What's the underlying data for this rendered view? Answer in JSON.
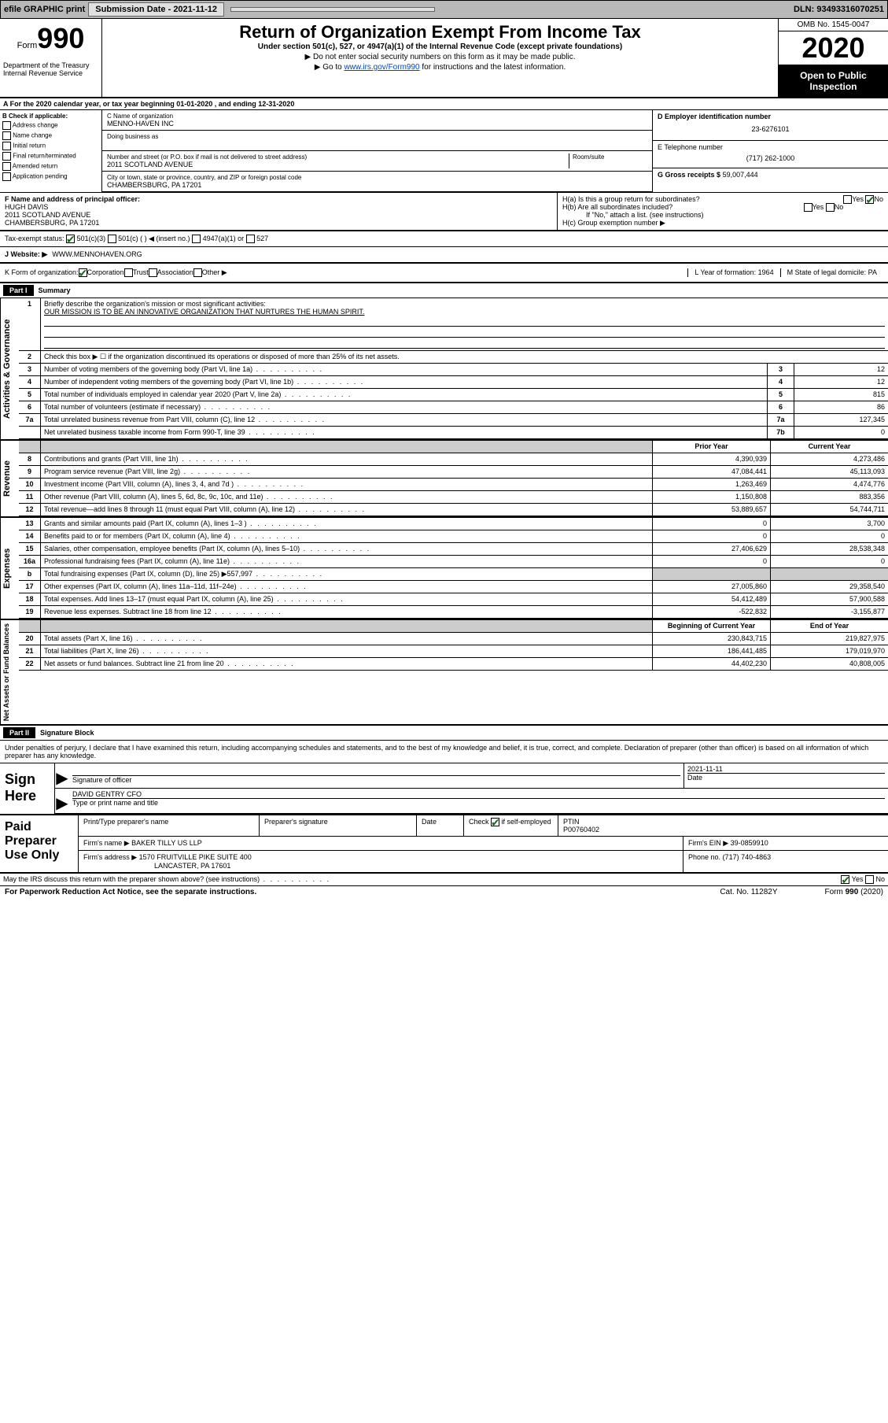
{
  "topbar": {
    "efile": "efile GRAPHIC print",
    "submission_label": "Submission Date - 2021-11-12",
    "dln": "DLN: 93493316070251"
  },
  "header": {
    "form_label": "Form",
    "form_num": "990",
    "dept": "Department of the Treasury\nInternal Revenue Service",
    "title": "Return of Organization Exempt From Income Tax",
    "sub": "Under section 501(c), 527, or 4947(a)(1) of the Internal Revenue Code (except private foundations)",
    "line1": "▶ Do not enter social security numbers on this form as it may be made public.",
    "line2_pre": "▶ Go to ",
    "line2_link": "www.irs.gov/Form990",
    "line2_post": " for instructions and the latest information.",
    "omb": "OMB No. 1545-0047",
    "year": "2020",
    "open": "Open to Public Inspection"
  },
  "section_a": "A For the 2020 calendar year, or tax year beginning 01-01-2020   , and ending 12-31-2020",
  "col_b": {
    "label": "B Check if applicable:",
    "items": [
      "Address change",
      "Name change",
      "Initial return",
      "Final return/terminated",
      "Amended return",
      "Application pending"
    ]
  },
  "col_c": {
    "name_lbl": "C Name of organization",
    "name": "MENNO-HAVEN INC",
    "dba_lbl": "Doing business as",
    "addr_lbl": "Number and street (or P.O. box if mail is not delivered to street address)",
    "room_lbl": "Room/suite",
    "addr": "2011 SCOTLAND AVENUE",
    "city_lbl": "City or town, state or province, country, and ZIP or foreign postal code",
    "city": "CHAMBERSBURG, PA  17201"
  },
  "col_d": {
    "ein_lbl": "D Employer identification number",
    "ein": "23-6276101",
    "tel_lbl": "E Telephone number",
    "tel": "(717) 262-1000",
    "gross_lbl": "G Gross receipts $",
    "gross": "59,007,444"
  },
  "section_f": {
    "lbl": "F  Name and address of principal officer:",
    "name": "HUGH DAVIS",
    "addr1": "2011 SCOTLAND AVENUE",
    "addr2": "CHAMBERSBURG, PA  17201"
  },
  "section_h": {
    "ha": "H(a)  Is this a group return for subordinates?",
    "hb": "H(b)  Are all subordinates included?",
    "hb_note": "If \"No,\" attach a list. (see instructions)",
    "hc": "H(c)  Group exemption number ▶"
  },
  "tax_status": {
    "lbl": "Tax-exempt status:",
    "opt1": "501(c)(3)",
    "opt2": "501(c) (  ) ◀ (insert no.)",
    "opt3": "4947(a)(1) or",
    "opt4": "527"
  },
  "website": {
    "lbl": "J   Website: ▶",
    "val": "WWW.MENNOHAVEN.ORG"
  },
  "korg": {
    "k": "K Form of organization:",
    "opts": [
      "Corporation",
      "Trust",
      "Association",
      "Other ▶"
    ],
    "l": "L Year of formation: 1964",
    "m": "M State of legal domicile: PA"
  },
  "part1": {
    "hdr": "Part I",
    "title": "Summary"
  },
  "gov": {
    "q1": "Briefly describe the organization's mission or most significant activities:",
    "mission": "OUR MISSION IS TO BE AN INNOVATIVE ORGANIZATION THAT NURTURES THE HUMAN SPIRIT.",
    "q2": "Check this box ▶ ☐  if the organization discontinued its operations or disposed of more than 25% of its net assets.",
    "rows": [
      {
        "n": "3",
        "d": "Number of voting members of the governing body (Part VI, line 1a)",
        "c": "3",
        "v": "12"
      },
      {
        "n": "4",
        "d": "Number of independent voting members of the governing body (Part VI, line 1b)",
        "c": "4",
        "v": "12"
      },
      {
        "n": "5",
        "d": "Total number of individuals employed in calendar year 2020 (Part V, line 2a)",
        "c": "5",
        "v": "815"
      },
      {
        "n": "6",
        "d": "Total number of volunteers (estimate if necessary)",
        "c": "6",
        "v": "86"
      },
      {
        "n": "7a",
        "d": "Total unrelated business revenue from Part VIII, column (C), line 12",
        "c": "7a",
        "v": "127,345"
      },
      {
        "n": "",
        "d": "Net unrelated business taxable income from Form 990-T, line 39",
        "c": "7b",
        "v": "0"
      }
    ]
  },
  "rev": {
    "hdr_py": "Prior Year",
    "hdr_cy": "Current Year",
    "rows": [
      {
        "n": "8",
        "d": "Contributions and grants (Part VIII, line 1h)",
        "py": "4,390,939",
        "cy": "4,273,486"
      },
      {
        "n": "9",
        "d": "Program service revenue (Part VIII, line 2g)",
        "py": "47,084,441",
        "cy": "45,113,093"
      },
      {
        "n": "10",
        "d": "Investment income (Part VIII, column (A), lines 3, 4, and 7d )",
        "py": "1,263,469",
        "cy": "4,474,776"
      },
      {
        "n": "11",
        "d": "Other revenue (Part VIII, column (A), lines 5, 6d, 8c, 9c, 10c, and 11e)",
        "py": "1,150,808",
        "cy": "883,356"
      },
      {
        "n": "12",
        "d": "Total revenue—add lines 8 through 11 (must equal Part VIII, column (A), line 12)",
        "py": "53,889,657",
        "cy": "54,744,711"
      }
    ]
  },
  "exp": {
    "rows": [
      {
        "n": "13",
        "d": "Grants and similar amounts paid (Part IX, column (A), lines 1–3 )",
        "py": "0",
        "cy": "3,700"
      },
      {
        "n": "14",
        "d": "Benefits paid to or for members (Part IX, column (A), line 4)",
        "py": "0",
        "cy": "0"
      },
      {
        "n": "15",
        "d": "Salaries, other compensation, employee benefits (Part IX, column (A), lines 5–10)",
        "py": "27,406,629",
        "cy": "28,538,348"
      },
      {
        "n": "16a",
        "d": "Professional fundraising fees (Part IX, column (A), line 11e)",
        "py": "0",
        "cy": "0"
      },
      {
        "n": "b",
        "d": "Total fundraising expenses (Part IX, column (D), line 25) ▶557,997",
        "py": "",
        "cy": "",
        "shade": true
      },
      {
        "n": "17",
        "d": "Other expenses (Part IX, column (A), lines 11a–11d, 11f–24e)",
        "py": "27,005,860",
        "cy": "29,358,540"
      },
      {
        "n": "18",
        "d": "Total expenses. Add lines 13–17 (must equal Part IX, column (A), line 25)",
        "py": "54,412,489",
        "cy": "57,900,588"
      },
      {
        "n": "19",
        "d": "Revenue less expenses. Subtract line 18 from line 12",
        "py": "-522,832",
        "cy": "-3,155,877"
      }
    ]
  },
  "na": {
    "hdr_py": "Beginning of Current Year",
    "hdr_cy": "End of Year",
    "rows": [
      {
        "n": "20",
        "d": "Total assets (Part X, line 16)",
        "py": "230,843,715",
        "cy": "219,827,975"
      },
      {
        "n": "21",
        "d": "Total liabilities (Part X, line 26)",
        "py": "186,441,485",
        "cy": "179,019,970"
      },
      {
        "n": "22",
        "d": "Net assets or fund balances. Subtract line 21 from line 20",
        "py": "44,402,230",
        "cy": "40,808,005"
      }
    ]
  },
  "part2": {
    "hdr": "Part II",
    "title": "Signature Block"
  },
  "perjury": "Under penalties of perjury, I declare that I have examined this return, including accompanying schedules and statements, and to the best of my knowledge and belief, it is true, correct, and complete. Declaration of preparer (other than officer) is based on all information of which preparer has any knowledge.",
  "sign": {
    "lbl": "Sign Here",
    "sig_lbl": "Signature of officer",
    "date_lbl": "Date",
    "date": "2021-11-11",
    "name": "DAVID GENTRY CFO",
    "name_lbl": "Type or print name and title"
  },
  "prep": {
    "lbl": "Paid Preparer Use Only",
    "c1": "Print/Type preparer's name",
    "c2": "Preparer's signature",
    "c3": "Date",
    "c4_pre": "Check",
    "c4_post": "if self-employed",
    "c5_lbl": "PTIN",
    "c5": "P00760402",
    "firm_lbl": "Firm's name    ▶",
    "firm": "BAKER TILLY US LLP",
    "ein_lbl": "Firm's EIN ▶",
    "ein": "39-0859910",
    "addr_lbl": "Firm's address ▶",
    "addr1": "1570 FRUITVILLE PIKE SUITE 400",
    "addr2": "LANCASTER, PA  17601",
    "phone_lbl": "Phone no.",
    "phone": "(717) 740-4863"
  },
  "discuss": "May the IRS discuss this return with the preparer shown above? (see instructions)",
  "footer": {
    "left": "For Paperwork Reduction Act Notice, see the separate instructions.",
    "mid": "Cat. No. 11282Y",
    "right_pre": "Form ",
    "right_b": "990",
    "right_post": " (2020)"
  },
  "yes": "Yes",
  "no": "No"
}
